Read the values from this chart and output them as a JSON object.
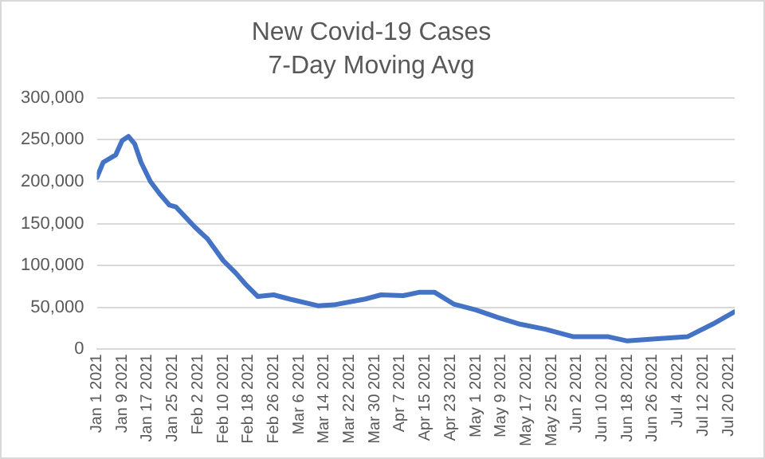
{
  "chart_data": {
    "type": "line",
    "title": "New Covid-19 Cases",
    "subtitle": "7-Day Moving Avg",
    "x": [
      "2021-01-01",
      "2021-01-03",
      "2021-01-07",
      "2021-01-09",
      "2021-01-11",
      "2021-01-13",
      "2021-01-15",
      "2021-01-18",
      "2021-01-21",
      "2021-01-24",
      "2021-01-26",
      "2021-01-29",
      "2021-02-01",
      "2021-02-05",
      "2021-02-10",
      "2021-02-14",
      "2021-02-17",
      "2021-02-21",
      "2021-02-26",
      "2021-03-03",
      "2021-03-12",
      "2021-03-17",
      "2021-03-27",
      "2021-04-01",
      "2021-04-08",
      "2021-04-13",
      "2021-04-18",
      "2021-04-24",
      "2021-05-01",
      "2021-05-08",
      "2021-05-15",
      "2021-05-23",
      "2021-06-01",
      "2021-06-12",
      "2021-06-18",
      "2021-06-25",
      "2021-07-07",
      "2021-07-15",
      "2021-07-22"
    ],
    "series": [
      {
        "color": "#4472c4",
        "values": [
          205000,
          223000,
          232000,
          249000,
          254000,
          245000,
          223000,
          200000,
          185000,
          172000,
          170000,
          158000,
          146000,
          132000,
          106000,
          91000,
          78000,
          63000,
          65000,
          60000,
          52000,
          53000,
          60000,
          65000,
          64000,
          68000,
          68000,
          54000,
          47000,
          38000,
          30000,
          24000,
          15000,
          15000,
          10000,
          12000,
          15000,
          30000,
          45000
        ]
      }
    ],
    "xlim": [
      "2021-01-01",
      "2021-07-22"
    ],
    "xticks": [
      {
        "value": "2021-01-01",
        "label": "Jan 1 2021"
      },
      {
        "value": "2021-01-09",
        "label": "Jan 9 2021"
      },
      {
        "value": "2021-01-17",
        "label": "Jan 17 2021"
      },
      {
        "value": "2021-01-25",
        "label": "Jan 25 2021"
      },
      {
        "value": "2021-02-02",
        "label": "Feb 2 2021"
      },
      {
        "value": "2021-02-10",
        "label": "Feb 10 2021"
      },
      {
        "value": "2021-02-18",
        "label": "Feb 18 2021"
      },
      {
        "value": "2021-02-26",
        "label": "Feb 26 2021"
      },
      {
        "value": "2021-03-06",
        "label": "Mar 6 2021"
      },
      {
        "value": "2021-03-14",
        "label": "Mar 14 2021"
      },
      {
        "value": "2021-03-22",
        "label": "Mar 22 2021"
      },
      {
        "value": "2021-03-30",
        "label": "Mar 30 2021"
      },
      {
        "value": "2021-04-07",
        "label": "Apr 7 2021"
      },
      {
        "value": "2021-04-15",
        "label": "Apr 15 2021"
      },
      {
        "value": "2021-04-23",
        "label": "Apr 23 2021"
      },
      {
        "value": "2021-05-01",
        "label": "May 1 2021"
      },
      {
        "value": "2021-05-09",
        "label": "May 9 2021"
      },
      {
        "value": "2021-05-17",
        "label": "May 17 2021"
      },
      {
        "value": "2021-05-25",
        "label": "May 25 2021"
      },
      {
        "value": "2021-06-02",
        "label": "Jun 2 2021"
      },
      {
        "value": "2021-06-10",
        "label": "Jun 10 2021"
      },
      {
        "value": "2021-06-18",
        "label": "Jun 18 2021"
      },
      {
        "value": "2021-06-26",
        "label": "Jun 26 2021"
      },
      {
        "value": "2021-07-04",
        "label": "Jul 4 2021"
      },
      {
        "value": "2021-07-12",
        "label": "Jul 12 2021"
      },
      {
        "value": "2021-07-20",
        "label": "Jul 20 2021"
      }
    ],
    "ylim": [
      0,
      300000
    ],
    "yticks": [
      {
        "value": 0,
        "label": "0"
      },
      {
        "value": 50000,
        "label": "50,000"
      },
      {
        "value": 100000,
        "label": "100,000"
      },
      {
        "value": 150000,
        "label": "150,000"
      },
      {
        "value": 200000,
        "label": "200,000"
      },
      {
        "value": 250000,
        "label": "250,000"
      },
      {
        "value": 300000,
        "label": "300,000"
      }
    ],
    "grid": "y",
    "legend": false,
    "marker": "none",
    "line_style": "solid"
  }
}
